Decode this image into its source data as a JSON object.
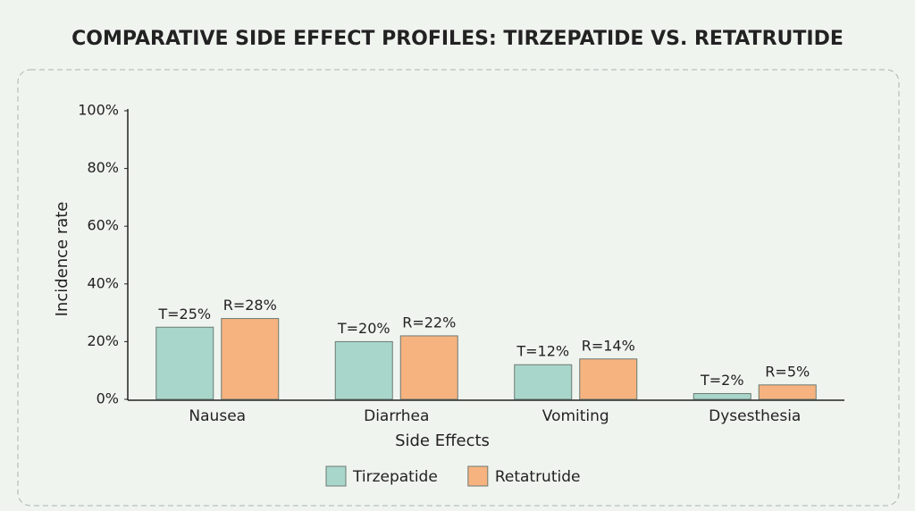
{
  "chart_data": {
    "type": "bar",
    "title": "COMPARATIVE SIDE EFFECT PROFILES: TIRZEPATIDE VS. RETATRUTIDE",
    "x_label": "Side Effects",
    "y_label": "Incidence rate",
    "categories": [
      "Nausea",
      "Diarrhea",
      "Vomiting",
      "Dysesthesia"
    ],
    "series": [
      {
        "name": "Tirzepatide",
        "color": "#a9d6ca",
        "values": [
          25,
          20,
          12,
          2
        ],
        "value_labels": [
          "T=25%",
          "T=20%",
          "T=12%",
          "T=2%"
        ]
      },
      {
        "name": "Retatrutide",
        "color": "#f6b37f",
        "values": [
          28,
          22,
          14,
          5
        ],
        "value_labels": [
          "R=28%",
          "R=22%",
          "R=14%",
          "R=5%"
        ]
      }
    ],
    "ylim": [
      0,
      100
    ],
    "yticks": [
      {
        "value": 0,
        "label": "0%"
      },
      {
        "value": 20,
        "label": "20%"
      },
      {
        "value": 40,
        "label": "40%"
      },
      {
        "value": 60,
        "label": "60%"
      },
      {
        "value": 80,
        "label": "80%"
      },
      {
        "value": 100,
        "label": "100%"
      }
    ],
    "grid": false,
    "legend": "bottom"
  }
}
